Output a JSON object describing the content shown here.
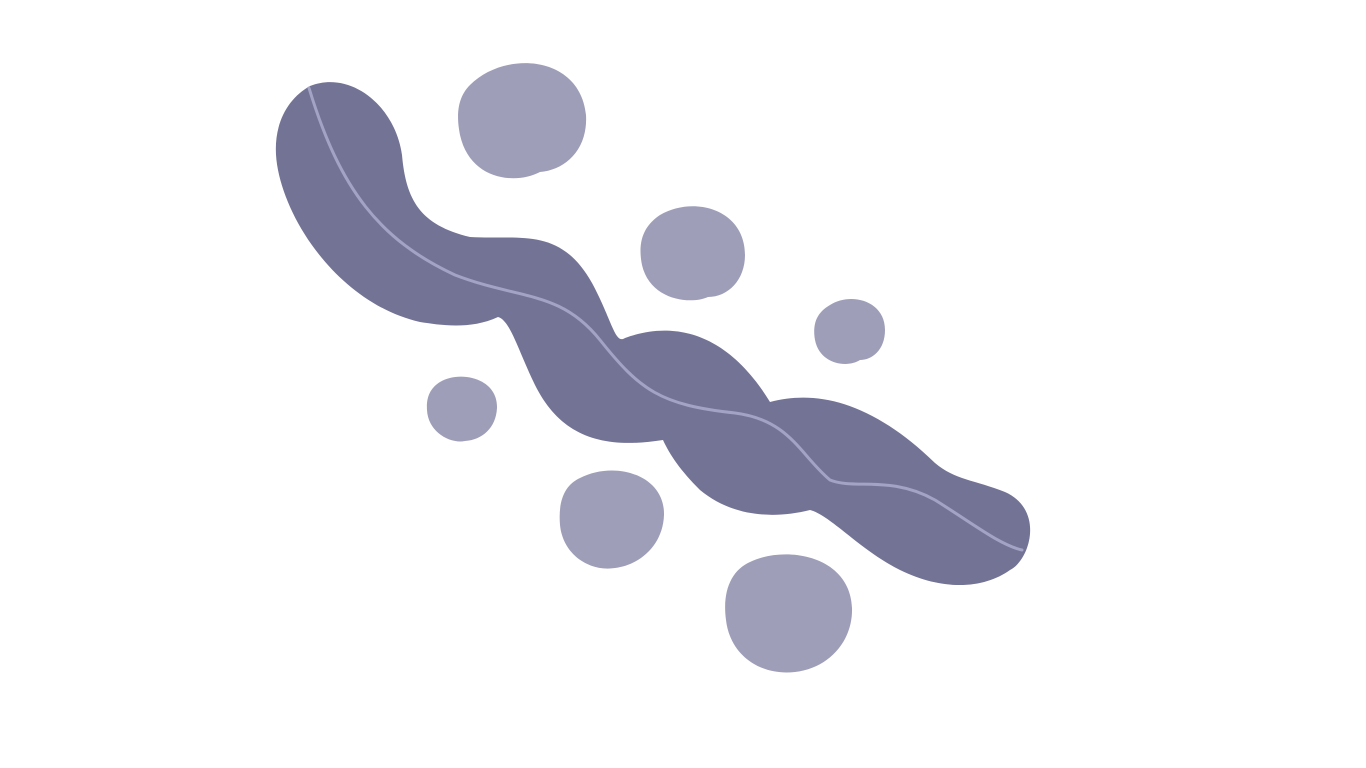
{
  "illustration": {
    "subject": "abstract-pod-with-seeds",
    "colors": {
      "background": "#ffffff",
      "pod": "#737395",
      "seed": "#9e9eb9",
      "pod_vein": "#a3a3c6"
    }
  }
}
